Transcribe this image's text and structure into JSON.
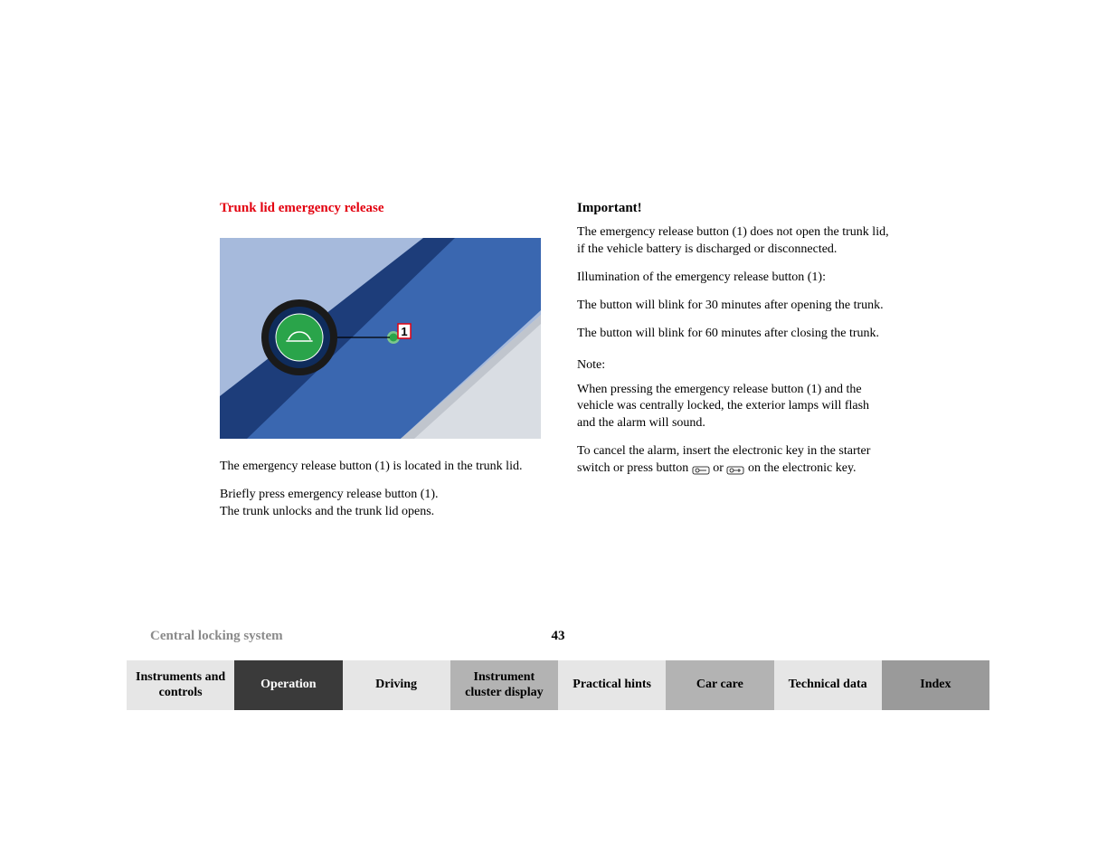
{
  "left": {
    "title": "Trunk lid emergency release",
    "p1": "The emergency release button (1) is located in the trunk lid.",
    "p2a": "Briefly press emergency release button (1).",
    "p2b": "The trunk unlocks and the trunk lid opens."
  },
  "right": {
    "title": "Important!",
    "p1": "The emergency release button (1) does not open the trunk lid, if the vehicle battery is discharged or disconnected.",
    "p2": "Illumination of the emergency release button (1):",
    "p3": "The button will blink for 30 minutes after opening the trunk.",
    "p4": "The button will blink for 60 minutes after closing the trunk.",
    "noteLabel": "Note:",
    "n1": "When pressing the emergency release button (1) and the vehicle was centrally locked, the exterior lamps will flash and the alarm will sound.",
    "n2a": "To cancel the alarm, insert the electronic key in the starter switch or press button ",
    "n2mid": " or ",
    "n2b": " on the electronic key."
  },
  "footer": {
    "section": "Central locking system",
    "page": "43"
  },
  "tabs": [
    {
      "label": "Instruments and controls",
      "bg": "#e6e6e6",
      "fg": "#000000"
    },
    {
      "label": "Operation",
      "bg": "#3a3a3a",
      "fg": "#ffffff"
    },
    {
      "label": "Driving",
      "bg": "#e6e6e6",
      "fg": "#000000"
    },
    {
      "label": "Instrument cluster display",
      "bg": "#b3b3b3",
      "fg": "#000000"
    },
    {
      "label": "Practical hints",
      "bg": "#e6e6e6",
      "fg": "#000000"
    },
    {
      "label": "Car care",
      "bg": "#b3b3b3",
      "fg": "#000000"
    },
    {
      "label": "Technical data",
      "bg": "#e6e6e6",
      "fg": "#000000"
    },
    {
      "label": "Index",
      "bg": "#9a9a9a",
      "fg": "#000000"
    }
  ],
  "illus": {
    "bg_sky": "#a6badc",
    "trunk_dark": "#1d3d7a",
    "trunk_light": "#3a67b0",
    "interior": "#d9dde3",
    "button_green": "#2aa44a",
    "button_ring": "#7cc78d",
    "callout_label": "1",
    "callout_bg": "#ffffff",
    "callout_border": "#e3000f",
    "magnifier_outer": "#1a1a1a",
    "magnifier_inner": "#2aa44a",
    "magnifier_ring": "#ffffff",
    "line": "#000000"
  }
}
